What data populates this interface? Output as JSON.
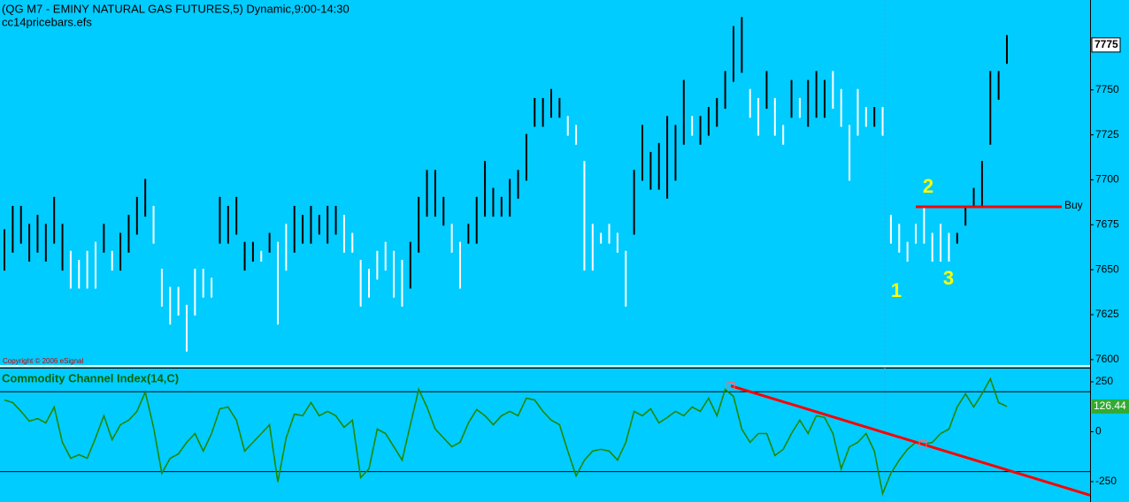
{
  "chart_data": [
    {
      "type": "pricebars",
      "title": "(QG M7 - EMINY NATURAL GAS FUTURES,5) Dynamic,9:00-14:30",
      "subtitle": "cc14pricebars.efs",
      "copyright": "Copyright © 2006 eSignal",
      "series": [
        {
          "name": "High",
          "values": [
            7672,
            7685,
            7685,
            7675,
            7680,
            7675,
            7690,
            7675,
            7660,
            7655,
            7660,
            7665,
            7675,
            7660,
            7670,
            7680,
            7690,
            7700,
            7685,
            7650,
            7640,
            7640,
            7630,
            7650,
            7650,
            7645,
            7690,
            7685,
            7690,
            7665,
            7665,
            7660,
            7670,
            7665,
            7675,
            7685,
            7680,
            7685,
            7680,
            7685,
            7685,
            7680,
            7670,
            7655,
            7650,
            7660,
            7665,
            7660,
            7655,
            7665,
            7690,
            7705,
            7705,
            7690,
            7675,
            7665,
            7675,
            7690,
            7710,
            7695,
            7690,
            7700,
            7705,
            7725,
            7745,
            7745,
            7750,
            7745,
            7735,
            7730,
            7710,
            7675,
            7670,
            7675,
            7670,
            7660,
            7705,
            7730,
            7715,
            7720,
            7735,
            7730,
            7755,
            7735,
            7735,
            7740,
            7745,
            7760,
            7785,
            7790,
            7750,
            7745,
            7760,
            7745,
            7730,
            7755,
            7745,
            7755,
            7760,
            7755,
            7760,
            7750,
            7730,
            7750,
            7740,
            7740,
            7740,
            7680,
            7675,
            7665,
            7675,
            7685,
            7670,
            7675,
            7670,
            7670,
            7685,
            7695,
            7710,
            7760,
            7760,
            7780
          ]
        },
        {
          "name": "Low",
          "values": [
            7650,
            7660,
            7665,
            7655,
            7660,
            7655,
            7665,
            7650,
            7640,
            7640,
            7640,
            7640,
            7660,
            7650,
            7650,
            7660,
            7670,
            7680,
            7665,
            7630,
            7620,
            7625,
            7605,
            7625,
            7635,
            7635,
            7665,
            7665,
            7670,
            7650,
            7655,
            7655,
            7660,
            7620,
            7650,
            7660,
            7665,
            7665,
            7670,
            7665,
            7670,
            7660,
            7660,
            7630,
            7635,
            7645,
            7650,
            7635,
            7630,
            7640,
            7660,
            7680,
            7680,
            7675,
            7660,
            7640,
            7665,
            7665,
            7680,
            7680,
            7680,
            7680,
            7690,
            7700,
            7730,
            7730,
            7735,
            7735,
            7725,
            7720,
            7650,
            7650,
            7665,
            7665,
            7660,
            7630,
            7670,
            7700,
            7695,
            7695,
            7690,
            7700,
            7720,
            7725,
            7720,
            7725,
            7730,
            7740,
            7755,
            7760,
            7735,
            7725,
            7740,
            7725,
            7720,
            7735,
            7735,
            7730,
            7735,
            7735,
            7740,
            7730,
            7700,
            7725,
            7730,
            7730,
            7725,
            7665,
            7660,
            7655,
            7665,
            7665,
            7655,
            7655,
            7655,
            7665,
            7675,
            7685,
            7685,
            7720,
            7745,
            7765
          ]
        }
      ],
      "bar_colors": [
        "#000",
        "#000",
        "#000",
        "#000",
        "#000",
        "#000",
        "#000",
        "#000",
        "#fff",
        "#fff",
        "#fff",
        "#fff",
        "#000",
        "#fff",
        "#000",
        "#000",
        "#000",
        "#000",
        "#fff",
        "#fff",
        "#fff",
        "#fff",
        "#fff",
        "#fff",
        "#fff",
        "#fff",
        "#000",
        "#000",
        "#000",
        "#000",
        "#000",
        "#fff",
        "#000",
        "#fff",
        "#fff",
        "#000",
        "#000",
        "#000",
        "#000",
        "#000",
        "#000",
        "#fff",
        "#fff",
        "#fff",
        "#fff",
        "#fff",
        "#fff",
        "#fff",
        "#fff",
        "#000",
        "#000",
        "#000",
        "#000",
        "#000",
        "#fff",
        "#fff",
        "#000",
        "#000",
        "#000",
        "#000",
        "#000",
        "#000",
        "#000",
        "#000",
        "#000",
        "#000",
        "#000",
        "#000",
        "#fff",
        "#fff",
        "#fff",
        "#fff",
        "#fff",
        "#fff",
        "#fff",
        "#fff",
        "#000",
        "#000",
        "#000",
        "#000",
        "#000",
        "#000",
        "#000",
        "#fff",
        "#000",
        "#000",
        "#000",
        "#000",
        "#000",
        "#000",
        "#fff",
        "#fff",
        "#000",
        "#fff",
        "#fff",
        "#000",
        "#fff",
        "#000",
        "#000",
        "#000",
        "#fff",
        "#fff",
        "#fff",
        "#fff",
        "#fff",
        "#000",
        "#fff",
        "#fff",
        "#fff",
        "#fff",
        "#fff",
        "#fff",
        "#fff",
        "#fff",
        "#fff",
        "#000",
        "#000",
        "#000",
        "#000",
        "#000",
        "#000",
        "#000"
      ],
      "ylim": [
        7597,
        7800
      ],
      "yticks": [
        7600,
        7625,
        7650,
        7675,
        7700,
        7725,
        7750
      ],
      "last_price": 7775,
      "buy_line": {
        "label": "Buy",
        "value": 7685,
        "color": "#ff0000"
      },
      "annotations": [
        "1",
        "2",
        "3"
      ]
    },
    {
      "type": "line",
      "title": "Commodity Channel Index(14,C)",
      "color": "#228800",
      "values": [
        159,
        146,
        102,
        53,
        66,
        44,
        124,
        -53,
        -133,
        -115,
        -133,
        -31,
        80,
        -40,
        35,
        58,
        102,
        199,
        22,
        -208,
        -133,
        -111,
        -53,
        -9,
        -97,
        -9,
        115,
        124,
        58,
        -97,
        -53,
        -9,
        35,
        -252,
        -31,
        88,
        80,
        146,
        80,
        102,
        80,
        22,
        58,
        -230,
        -186,
        13,
        -9,
        -75,
        -142,
        35,
        212,
        124,
        13,
        -31,
        -75,
        -53,
        44,
        111,
        80,
        35,
        80,
        102,
        80,
        168,
        159,
        102,
        58,
        35,
        -97,
        -221,
        -142,
        -97,
        -88,
        -97,
        -142,
        -53,
        102,
        80,
        115,
        44,
        71,
        102,
        80,
        124,
        102,
        168,
        80,
        212,
        177,
        13,
        -53,
        -9,
        -9,
        -119,
        -88,
        -9,
        58,
        -9,
        80,
        71,
        -9,
        -186,
        -75,
        -53,
        -9,
        -97,
        -310,
        -208,
        -142,
        -88,
        -53,
        -62,
        -53,
        -9,
        13,
        124,
        190,
        124,
        190,
        265,
        146,
        126.44
      ],
      "ylim": [
        -352,
        312
      ],
      "yticks": [
        250,
        0,
        -250
      ],
      "ref_lines": [
        200,
        -200
      ],
      "trendline": {
        "start": 230,
        "end": -318,
        "color": "#ff0000"
      }
    }
  ]
}
